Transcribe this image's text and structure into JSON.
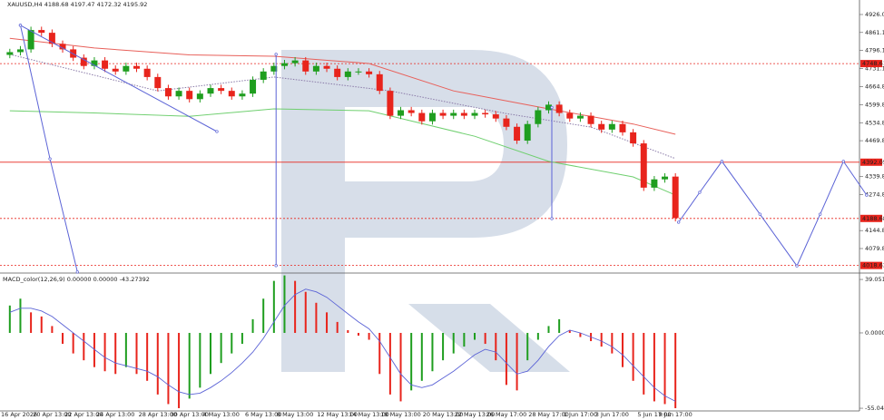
{
  "chart_data": {
    "type": "candlestick",
    "title": "XAUUSD,H4  4188.68 4197.47 4172.32 4195.92",
    "categories": [
      "16 Apr 2026",
      null,
      null,
      null,
      "20 Apr 13:00",
      null,
      null,
      "22 Apr 13:00",
      null,
      null,
      "24 Apr 13:00",
      null,
      null,
      null,
      "28 Apr 13:00",
      null,
      null,
      "30 Apr 13:00",
      null,
      null,
      "4 May 13:00",
      null,
      null,
      null,
      "6 May 13:00",
      null,
      null,
      "8 May 13:00",
      null,
      null,
      null,
      "12 May 13:00",
      null,
      null,
      "14 May 13:00",
      null,
      null,
      "18 May 13:00",
      null,
      null,
      null,
      "20 May 13:00",
      null,
      null,
      "22 May 13:00",
      null,
      null,
      "26 May 17:00",
      null,
      null,
      null,
      "28 May 17:00",
      null,
      null,
      "1 Jun 17:00",
      null,
      null,
      "3 Jun 17:00",
      null,
      null,
      null,
      "5 Jun 17:00",
      null,
      "9 Jun 17:00"
    ],
    "open": [
      4780,
      4790,
      4800,
      4870,
      4860,
      4820,
      4800,
      4770,
      4740,
      4760,
      4730,
      4720,
      4740,
      4730,
      4700,
      4660,
      4630,
      4650,
      4620,
      4640,
      4660,
      4650,
      4630,
      4640,
      4690,
      4720,
      4740,
      4750,
      4760,
      4720,
      4740,
      4730,
      4700,
      4720,
      4720,
      4710,
      4650,
      4560,
      4580,
      4570,
      4540,
      4570,
      4560,
      4570,
      4560,
      4570,
      4565,
      4550,
      4520,
      4470,
      4530,
      4580,
      4600,
      4570,
      4550,
      4560,
      4530,
      4510,
      4530,
      4500,
      4460,
      4300,
      4330,
      4340
    ],
    "high": [
      4802,
      4812,
      4882,
      4882,
      4872,
      4832,
      4812,
      4782,
      4772,
      4772,
      4742,
      4752,
      4752,
      4742,
      4712,
      4672,
      4662,
      4662,
      4652,
      4672,
      4672,
      4662,
      4652,
      4702,
      4732,
      4752,
      4762,
      4772,
      4772,
      4752,
      4752,
      4742,
      4732,
      4732,
      4732,
      4722,
      4662,
      4592,
      4592,
      4582,
      4582,
      4582,
      4582,
      4582,
      4582,
      4582,
      4577,
      4562,
      4532,
      4542,
      4592,
      4612,
      4612,
      4582,
      4572,
      4572,
      4542,
      4542,
      4542,
      4512,
      4472,
      4342,
      4352,
      4352
    ],
    "low": [
      4768,
      4778,
      4788,
      4848,
      4808,
      4788,
      4758,
      4728,
      4728,
      4718,
      4708,
      4708,
      4718,
      4688,
      4648,
      4618,
      4618,
      4608,
      4608,
      4628,
      4638,
      4618,
      4618,
      4628,
      4678,
      4708,
      4728,
      4738,
      4708,
      4708,
      4718,
      4688,
      4688,
      4708,
      4698,
      4638,
      4548,
      4548,
      4558,
      4528,
      4528,
      4548,
      4548,
      4548,
      4548,
      4553,
      4538,
      4508,
      4458,
      4458,
      4518,
      4568,
      4558,
      4538,
      4538,
      4518,
      4498,
      4498,
      4488,
      4448,
      4288,
      4288,
      4318,
      4178
    ],
    "close": [
      4790,
      4800,
      4870,
      4860,
      4820,
      4800,
      4770,
      4740,
      4760,
      4730,
      4720,
      4740,
      4730,
      4700,
      4660,
      4630,
      4650,
      4620,
      4640,
      4660,
      4650,
      4630,
      4640,
      4690,
      4720,
      4740,
      4750,
      4760,
      4720,
      4740,
      4730,
      4700,
      4720,
      4720,
      4710,
      4650,
      4560,
      4580,
      4570,
      4540,
      4570,
      4560,
      4570,
      4560,
      4570,
      4565,
      4550,
      4520,
      4470,
      4530,
      4580,
      4600,
      4570,
      4550,
      4560,
      4530,
      4510,
      4530,
      4500,
      4460,
      4300,
      4330,
      4340,
      4190
    ],
    "up_color": "#1f9e1f",
    "down_color": "#e8241c",
    "moving_averages": [
      {
        "color": "#e8605a",
        "style": "solid",
        "x": [
          0,
          8,
          17,
          25,
          34,
          42,
          51,
          59,
          63
        ],
        "values": [
          4840,
          4805,
          4780,
          4775,
          4749,
          4650,
          4585,
          4530,
          4493
        ]
      },
      {
        "color": "#6fcf6f",
        "style": "solid",
        "x": [
          0,
          8,
          17,
          25,
          34,
          44,
          51,
          59,
          63
        ],
        "values": [
          4578,
          4570,
          4558,
          4585,
          4578,
          4486,
          4395,
          4339,
          4273
        ]
      },
      {
        "color": "#8a7aa8",
        "style": "dotted",
        "x": [
          0,
          14,
          25,
          36,
          47,
          55,
          63
        ],
        "values": [
          4782,
          4650,
          4700,
          4650,
          4568,
          4519,
          4405
        ]
      }
    ],
    "analysis_lines": [
      {
        "x": [
          1,
          19.6
        ],
        "values": [
          4887,
          4503
        ]
      },
      {
        "x": [
          1,
          3.8,
          6.4
        ],
        "values": [
          4887,
          4404,
          3995
        ]
      },
      {
        "x": [
          25.2,
          25.2
        ],
        "values": [
          4782,
          4018
        ]
      },
      {
        "x": [
          51.3,
          51.3
        ],
        "values": [
          4590,
          4188
        ]
      },
      {
        "x": [
          63.3,
          65.3,
          67.4,
          71,
          74.5,
          76.7,
          78.9,
          81.1
        ],
        "values": [
          4175,
          4283,
          4395,
          4204,
          4017,
          4204,
          4395,
          4273
        ]
      }
    ],
    "analysis_color": "#5b63d6",
    "levels": [
      {
        "value": 4748.61,
        "style": "dotted"
      },
      {
        "value": 4392.05,
        "style": "solid"
      },
      {
        "value": 4188.68,
        "style": "dotted"
      },
      {
        "value": 4018.63,
        "style": "dotted"
      }
    ],
    "level_color": "#e8241c",
    "ylim": [
      3994.5,
      4978.5
    ],
    "yticks": [
      {
        "value": 4926.05,
        "label": "4926.05"
      },
      {
        "value": 4861.1,
        "label": "4861.10"
      },
      {
        "value": 4796.1,
        "label": "4796.10"
      },
      {
        "value": 4731.1,
        "label": "4731.10"
      },
      {
        "value": 4664.8,
        "label": "4664.80"
      },
      {
        "value": 4599.8,
        "label": "4599.80"
      },
      {
        "value": 4534.8,
        "label": "4534.80"
      },
      {
        "value": 4469.8,
        "label": "4469.80"
      },
      {
        "value": 4339.8,
        "label": "4339.80"
      },
      {
        "value": 4274.8,
        "label": "4274.80"
      },
      {
        "value": 4144.8,
        "label": "4144.80"
      },
      {
        "value": 4079.8,
        "label": "4079.80"
      }
    ],
    "macd": {
      "title": "MACD_color(12,26,9) 0.00000 0.00000 -43.27392",
      "histogram": [
        20,
        25,
        15,
        12,
        5,
        -8,
        -15,
        -20,
        -25,
        -28,
        -30,
        -25,
        -30,
        -35,
        -45,
        -52,
        -55,
        -48,
        -40,
        -30,
        -22,
        -15,
        -8,
        10,
        25,
        38,
        42,
        38,
        30,
        22,
        15,
        8,
        2,
        -2,
        -5,
        -30,
        -45,
        -50,
        -42,
        -35,
        -28,
        -20,
        -15,
        -10,
        -5,
        -8,
        -20,
        -38,
        -42,
        -20,
        -5,
        5,
        10,
        2,
        -3,
        -6,
        -10,
        -15,
        -25,
        -35,
        -45,
        -50,
        -52,
        -55
      ],
      "signal": [
        15,
        18,
        18,
        16,
        12,
        6,
        0,
        -6,
        -12,
        -18,
        -22,
        -24,
        -26,
        -28,
        -32,
        -38,
        -43,
        -45,
        -44,
        -40,
        -35,
        -29,
        -22,
        -14,
        -4,
        8,
        20,
        28,
        32,
        30,
        26,
        20,
        14,
        8,
        3,
        -6,
        -18,
        -30,
        -38,
        -40,
        -38,
        -33,
        -28,
        -22,
        -16,
        -12,
        -14,
        -22,
        -30,
        -28,
        -20,
        -10,
        -2,
        2,
        0,
        -3,
        -6,
        -10,
        -16,
        -24,
        -32,
        -40,
        -46,
        -50
      ],
      "signal_color": "#5b63d6",
      "ylim": [
        -57,
        42.4
      ],
      "yticks": [
        39.05142,
        {
          "value": 0,
          "label": "0.00000"
        },
        -55.04305
      ]
    }
  }
}
